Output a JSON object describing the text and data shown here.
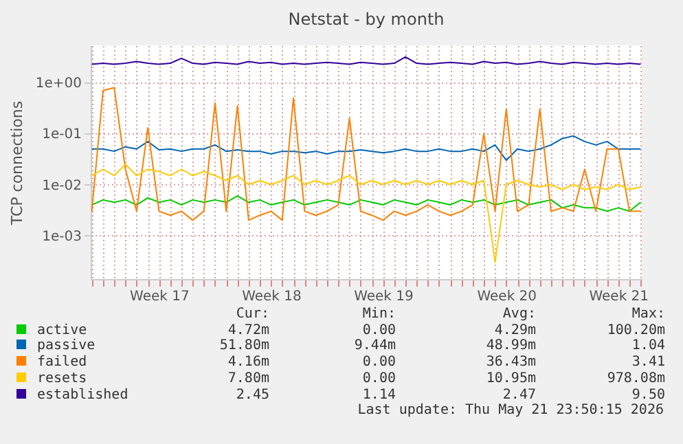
{
  "chart_data": {
    "type": "line",
    "title": "Netstat - by month",
    "ylabel": "TCP connections",
    "log": "y",
    "grid": true,
    "legend": "bottom",
    "categories": [
      null,
      null,
      null,
      null,
      null,
      null,
      "Week 17",
      null,
      null,
      null,
      null,
      null,
      null,
      null,
      null,
      null,
      "Week 18",
      null,
      null,
      null,
      null,
      null,
      null,
      null,
      null,
      null,
      "Week 19",
      null,
      null,
      null,
      null,
      null,
      null,
      null,
      null,
      null,
      null,
      "Week 20",
      null,
      null,
      null,
      null,
      null,
      null,
      null,
      null,
      null,
      "Week 21",
      null,
      null
    ],
    "ylim": [
      0.00014,
      5.4
    ],
    "yticks": [
      {
        "value": 0.001,
        "label": "1e-03"
      },
      {
        "value": 0.01,
        "label": "1e-02"
      },
      {
        "value": 0.1,
        "label": "1e-01"
      },
      {
        "value": 1,
        "label": "1e+00"
      }
    ],
    "series": [
      {
        "name": "active",
        "color": "#00cc00",
        "values": [
          0.004,
          0.005,
          0.0045,
          0.005,
          0.004,
          0.0055,
          0.0045,
          0.005,
          0.004,
          0.005,
          0.0045,
          0.005,
          0.0045,
          0.006,
          0.0045,
          0.005,
          0.004,
          0.0045,
          0.005,
          0.004,
          0.0045,
          0.005,
          0.0045,
          0.004,
          0.005,
          0.0045,
          0.004,
          0.005,
          0.0045,
          0.004,
          0.005,
          0.0045,
          0.004,
          0.005,
          0.0045,
          0.005,
          0.004,
          0.0045,
          0.005,
          0.004,
          0.0045,
          0.005,
          0.0035,
          0.004,
          0.0035,
          0.0035,
          0.003,
          0.0035,
          0.003,
          0.0045
        ]
      },
      {
        "name": "passive",
        "color": "#0066b3",
        "values": [
          0.05,
          0.05,
          0.045,
          0.055,
          0.05,
          0.07,
          0.048,
          0.05,
          0.045,
          0.05,
          0.05,
          0.06,
          0.045,
          0.048,
          0.045,
          0.045,
          0.04,
          0.045,
          0.045,
          0.042,
          0.045,
          0.04,
          0.045,
          0.045,
          0.048,
          0.045,
          0.042,
          0.045,
          0.05,
          0.045,
          0.045,
          0.05,
          0.045,
          0.045,
          0.05,
          0.045,
          0.06,
          0.03,
          0.05,
          0.045,
          0.05,
          0.06,
          0.08,
          0.09,
          0.07,
          0.06,
          0.07,
          0.05,
          0.05,
          0.05
        ]
      },
      {
        "name": "failed",
        "color": "#ff8000",
        "values": [
          0.003,
          0.7,
          0.8,
          0.02,
          0.003,
          0.13,
          0.003,
          0.0025,
          0.003,
          0.002,
          0.003,
          0.4,
          0.003,
          0.35,
          0.002,
          0.0025,
          0.003,
          0.002,
          0.5,
          0.003,
          0.0025,
          0.003,
          0.004,
          0.2,
          0.003,
          0.0025,
          0.002,
          0.003,
          0.0025,
          0.003,
          0.004,
          0.003,
          0.0025,
          0.003,
          0.004,
          0.1,
          0.003,
          0.3,
          0.003,
          0.004,
          0.3,
          0.003,
          0.0035,
          0.003,
          0.02,
          0.003,
          0.05,
          0.05,
          0.003,
          0.003
        ]
      },
      {
        "name": "resets",
        "color": "#ffcc00",
        "values": [
          0.015,
          0.02,
          0.015,
          0.025,
          0.015,
          0.02,
          0.018,
          0.015,
          0.02,
          0.015,
          0.018,
          0.015,
          0.012,
          0.015,
          0.01,
          0.012,
          0.01,
          0.012,
          0.015,
          0.01,
          0.012,
          0.01,
          0.012,
          0.015,
          0.01,
          0.012,
          0.01,
          0.012,
          0.01,
          0.012,
          0.01,
          0.012,
          0.01,
          0.012,
          0.01,
          0.012,
          0.0003,
          0.01,
          0.012,
          0.01,
          0.009,
          0.01,
          0.008,
          0.01,
          0.008,
          0.009,
          0.008,
          0.01,
          0.008,
          0.009
        ]
      },
      {
        "name": "established",
        "color": "#330099",
        "values": [
          2.3,
          2.4,
          2.3,
          2.4,
          2.6,
          2.4,
          2.3,
          2.4,
          3.0,
          2.4,
          2.3,
          2.5,
          2.4,
          2.3,
          2.6,
          2.4,
          2.5,
          2.3,
          2.4,
          2.3,
          2.4,
          2.5,
          2.4,
          2.3,
          2.5,
          2.4,
          2.3,
          2.4,
          3.2,
          2.4,
          2.3,
          2.4,
          2.5,
          2.4,
          2.3,
          2.6,
          2.4,
          2.5,
          2.3,
          2.4,
          2.6,
          2.4,
          2.3,
          2.5,
          2.4,
          2.3,
          2.4,
          2.3,
          2.4,
          2.3
        ]
      }
    ],
    "annotations": [
      "Cur:",
      "Min:",
      "Avg:",
      "Max:",
      "4.72m",
      "0.00",
      "4.29m",
      "100.20m",
      "51.80m",
      "9.44m",
      "48.99m",
      "1.04",
      "4.16m",
      "0.00",
      "36.43m",
      "3.41",
      "7.80m",
      "0.00",
      "10.95m",
      "978.08m",
      "2.45",
      "1.14",
      "2.47",
      "9.50",
      "Last update: Thu May 21 23:50:15 2026"
    ]
  }
}
